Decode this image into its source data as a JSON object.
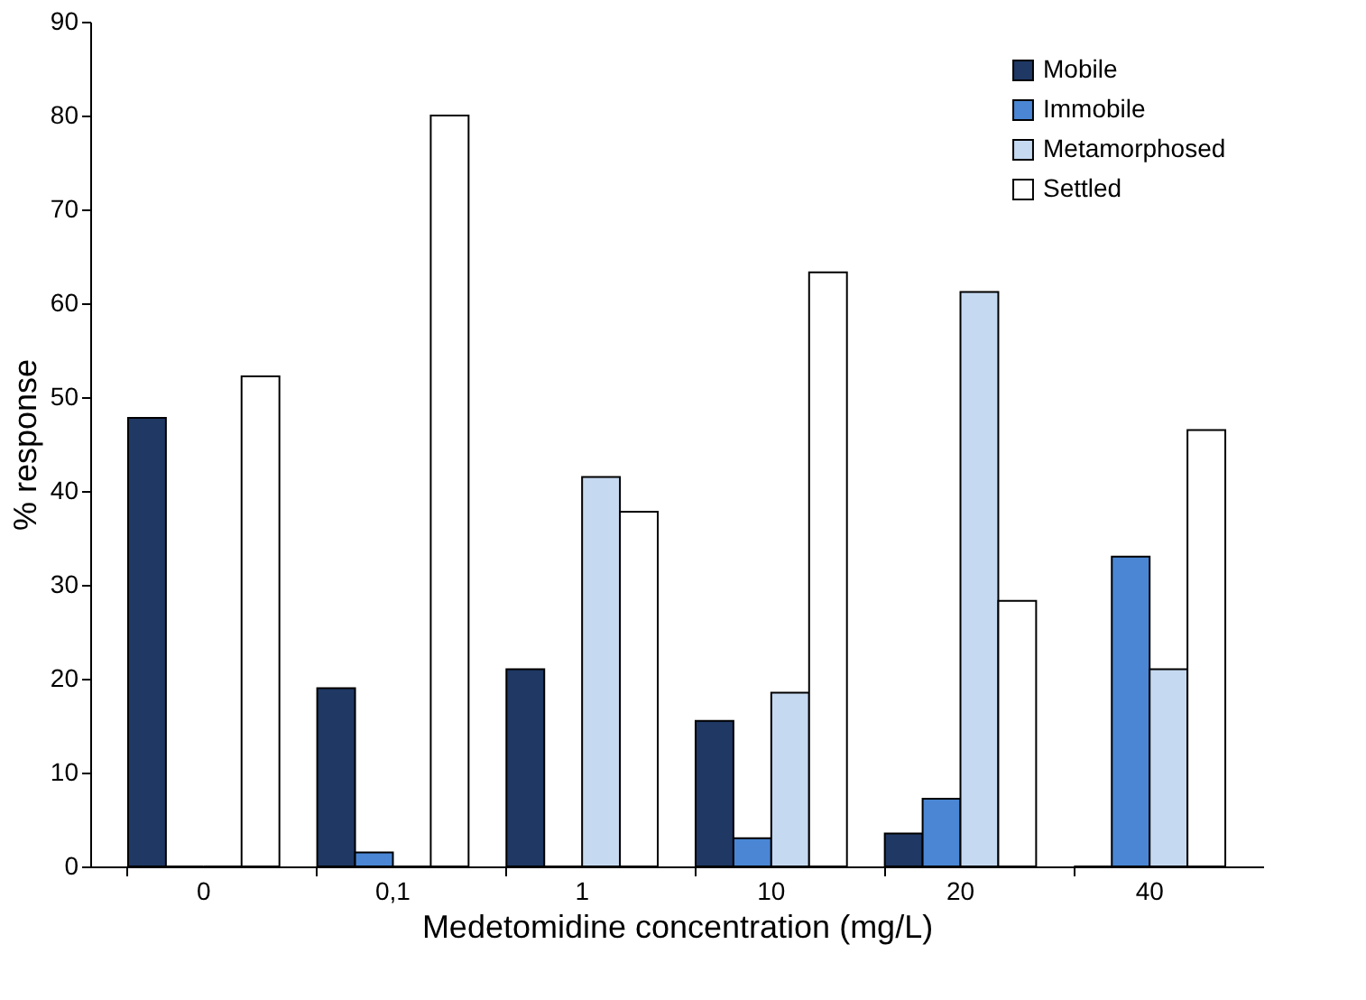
{
  "chart_data": {
    "type": "bar",
    "xlabel": "Medetomidine concentration (mg/L)",
    "ylabel": "% response",
    "categories": [
      "0",
      "0,1",
      "1",
      "10",
      "20",
      "40"
    ],
    "series": [
      {
        "name": "Mobile",
        "color": "#1f3864",
        "values": [
          47.8,
          19,
          21,
          15.5,
          3.5,
          0
        ]
      },
      {
        "name": "Immobile",
        "color": "#4a86d4",
        "values": [
          0,
          1.5,
          0,
          3,
          7.2,
          33
        ]
      },
      {
        "name": "Metamorphosed",
        "color": "#c5d9f1",
        "values": [
          0,
          0,
          41.5,
          18.5,
          61.2,
          21
        ]
      },
      {
        "name": "Settled",
        "color": "#ffffff",
        "values": [
          52.2,
          80,
          37.8,
          63.3,
          28.3,
          46.5
        ]
      }
    ],
    "ylim": [
      0,
      90
    ],
    "yticks": [
      0,
      10,
      20,
      30,
      40,
      50,
      60,
      70,
      80,
      90
    ],
    "grid": false,
    "legend": "top right"
  }
}
